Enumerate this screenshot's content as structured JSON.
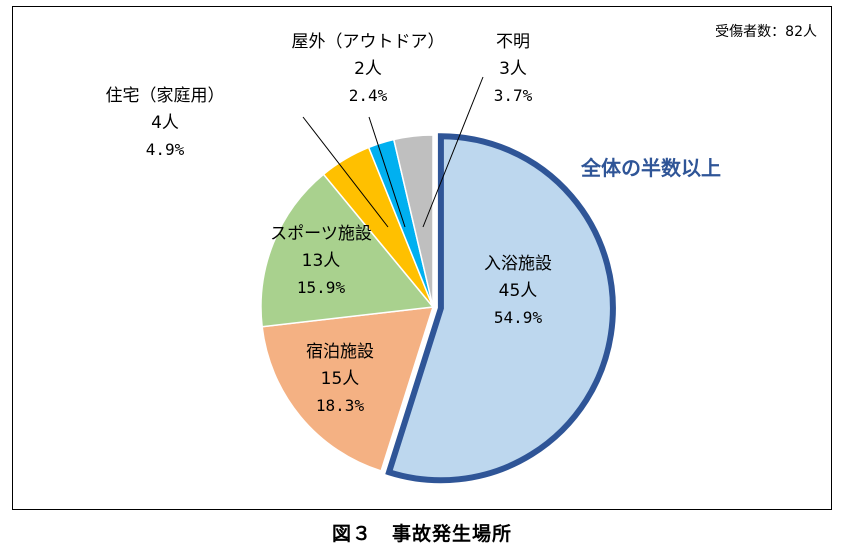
{
  "total_note": "受傷者数：82人",
  "caption": "図３　事故発生場所",
  "annotation": "全体の半数以上",
  "colors": {
    "accent": "#2f5597",
    "leader": "#000000"
  },
  "chart_data": {
    "type": "pie",
    "title": "",
    "slices": [
      {
        "label": "入浴施設",
        "count": "45人",
        "percent": "54.9%",
        "value": 45,
        "color": "#bdd7ee",
        "highlight": true
      },
      {
        "label": "宿泊施設",
        "count": "15人",
        "percent": "18.3%",
        "value": 15,
        "color": "#f4b183"
      },
      {
        "label": "スポーツ施設",
        "count": "13人",
        "percent": "15.9%",
        "value": 13,
        "color": "#a9d18e"
      },
      {
        "label": "住宅（家庭用）",
        "count": "4人",
        "percent": "4.9%",
        "value": 4,
        "color": "#ffc000"
      },
      {
        "label": "屋外（アウトドア）",
        "count": "2人",
        "percent": "2.4%",
        "value": 2,
        "color": "#00b0f0"
      },
      {
        "label": "不明",
        "count": "3人",
        "percent": "3.7%",
        "value": 3,
        "color": "#bfbfbf"
      }
    ]
  }
}
